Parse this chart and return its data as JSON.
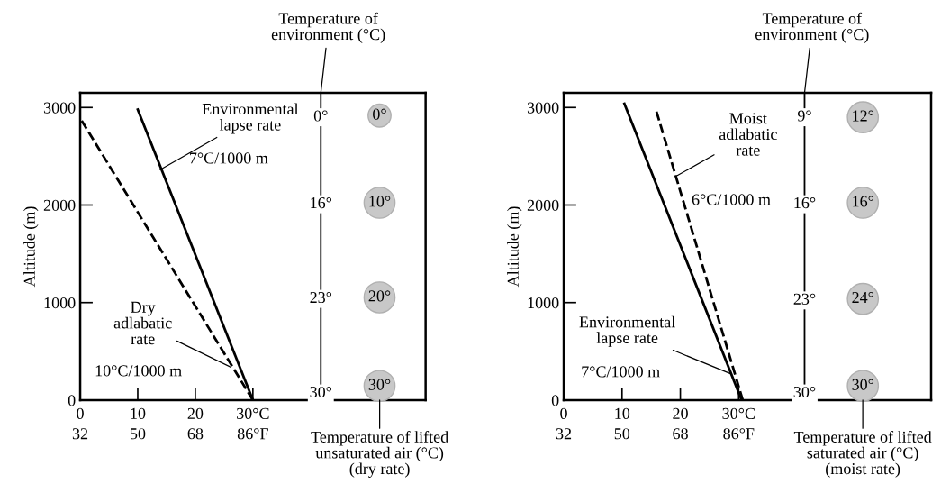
{
  "chart_data": [
    {
      "type": "line",
      "ylabel": "Altitude (m)",
      "xlim": [
        0,
        60
      ],
      "ylim": [
        0,
        3150
      ],
      "xticks": [
        0,
        10,
        20,
        {
          "value": 30,
          "label": "30°C"
        }
      ],
      "x2lim": [
        32,
        140
      ],
      "x2ticks": [
        32,
        50,
        68,
        {
          "value": 86,
          "label": "86°F"
        }
      ],
      "yticks": [
        0,
        1000,
        2000,
        3000
      ],
      "grid": false,
      "legend": false,
      "series": [
        {
          "color": "#000000",
          "line_style": "solid",
          "x": [
            30,
            10
          ],
          "values": [
            0,
            2980
          ]
        },
        {
          "color": "#000000",
          "line_style": "dashed",
          "x": [
            30,
            0
          ],
          "values": [
            0,
            2890
          ]
        }
      ],
      "ref_lines": [
        {
          "axis": "x",
          "value": 41.8,
          "color": "#000000"
        }
      ],
      "annotations": [
        {
          "text": "Temperature of\nenvironment (°C)",
          "x": 41.8,
          "y": 3150
        },
        {
          "text": "Environmental\nlapse rate",
          "x": 13.9,
          "y": 2362
        },
        "7°C/1000 m",
        {
          "text": "Dry\nadlabatic\nrate",
          "x": 26.1,
          "y": 339
        },
        "10°C/1000 m",
        {
          "text": "0°",
          "x": 41.8,
          "y": 2900
        },
        {
          "text": "16°",
          "x": 41.8,
          "y": 2008
        },
        {
          "text": "23°",
          "x": 41.8,
          "y": 1038
        },
        {
          "text": "30°",
          "x": 41.8,
          "y": 68
        },
        {
          "text": "0°",
          "x": 52,
          "y": 2917
        },
        {
          "text": "10°",
          "x": 52,
          "y": 2023
        },
        {
          "text": "20°",
          "x": 52,
          "y": 1053
        },
        {
          "text": "30°",
          "x": 52,
          "y": 145
        },
        "Temperature of lifted\nunsaturated air (°C)\n(dry rate)"
      ]
    },
    {
      "type": "line",
      "ylabel": "Altitude (m)",
      "xlim": [
        0,
        63
      ],
      "ylim": [
        0,
        3150
      ],
      "xticks": [
        0,
        10,
        20,
        {
          "value": 30,
          "label": "30°C"
        }
      ],
      "x2lim": [
        32,
        145.4
      ],
      "x2ticks": [
        32,
        50,
        68,
        {
          "value": 86,
          "label": "86°F"
        }
      ],
      "yticks": [
        0,
        1000,
        2000,
        3000
      ],
      "grid": false,
      "legend": false,
      "series": [
        {
          "color": "#000000",
          "line_style": "solid",
          "x": [
            30.5,
            10.4
          ],
          "values": [
            0,
            3040
          ]
        },
        {
          "color": "#000000",
          "line_style": "dashed",
          "x": [
            30.7,
            15.9
          ],
          "values": [
            0,
            2960
          ]
        }
      ],
      "ref_lines": [
        {
          "axis": "x",
          "value": 41.3,
          "color": "#000000"
        }
      ],
      "annotations": [
        {
          "text": "Temperature of\nenvironment (°C)",
          "x": 41.3,
          "y": 3150
        },
        {
          "text": "Moist\nadlabatic\nrate",
          "x": 19.4,
          "y": 2300
        },
        "6°C/1000 m",
        {
          "text": "Environmental\nlapse rate",
          "x": 28.7,
          "y": 268
        },
        "7°C/1000 m",
        {
          "text": "9°",
          "x": 41.3,
          "y": 2900
        },
        {
          "text": "16°",
          "x": 41.3,
          "y": 2008
        },
        {
          "text": "23°",
          "x": 41.3,
          "y": 1022
        },
        {
          "text": "30°",
          "x": 41.3,
          "y": 68
        },
        {
          "text": "12°",
          "x": 51.3,
          "y": 2900
        },
        {
          "text": "16°",
          "x": 51.3,
          "y": 2023
        },
        {
          "text": "24°",
          "x": 51.3,
          "y": 1038
        },
        {
          "text": "30°",
          "x": 51.3,
          "y": 145
        },
        "Temperature of lifted\nsaturated air (°C)\n(moist rate)"
      ]
    }
  ]
}
